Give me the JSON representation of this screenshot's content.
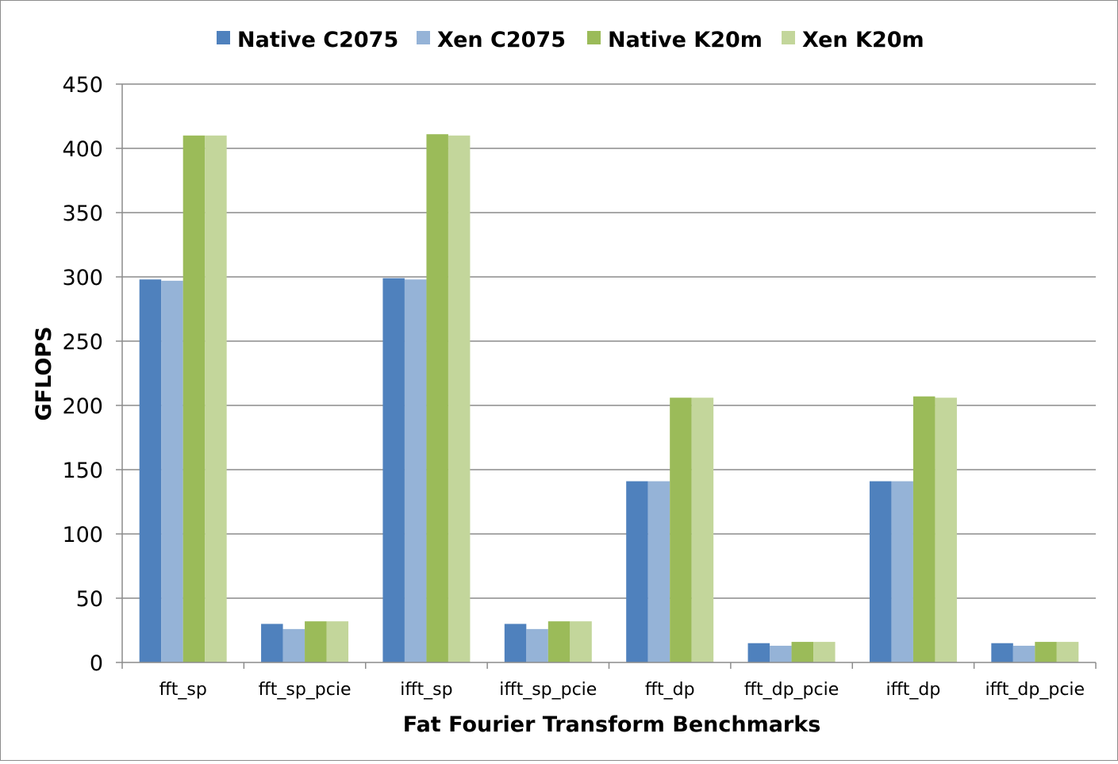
{
  "chart_data": {
    "type": "bar",
    "title": "",
    "xlabel": "Fat Fourier Transform Benchmarks",
    "ylabel": "GFLOPS",
    "ylim": [
      0,
      450
    ],
    "yticks": [
      "0",
      "50",
      "100",
      "150",
      "200",
      "250",
      "300",
      "350",
      "400",
      "450"
    ],
    "grid": true,
    "legend_position": "top",
    "categories": [
      "fft_sp",
      "fft_sp_pcie",
      "ifft_sp",
      "ifft_sp_pcie",
      "fft_dp",
      "fft_dp_pcie",
      "ifft_dp",
      "ifft_dp_pcie"
    ],
    "series": [
      {
        "name": "Native C2075",
        "color": "#4f81bd",
        "values": [
          298,
          30,
          299,
          30,
          141,
          15,
          141,
          15
        ]
      },
      {
        "name": "Xen C2075",
        "color": "#95b3d7",
        "values": [
          297,
          26,
          298,
          26,
          141,
          13,
          141,
          13
        ]
      },
      {
        "name": "Native K20m",
        "color": "#9bbb59",
        "values": [
          410,
          32,
          411,
          32,
          206,
          16,
          207,
          16
        ]
      },
      {
        "name": "Xen K20m",
        "color": "#c3d69b",
        "values": [
          410,
          32,
          410,
          32,
          206,
          16,
          206,
          16
        ]
      }
    ]
  }
}
